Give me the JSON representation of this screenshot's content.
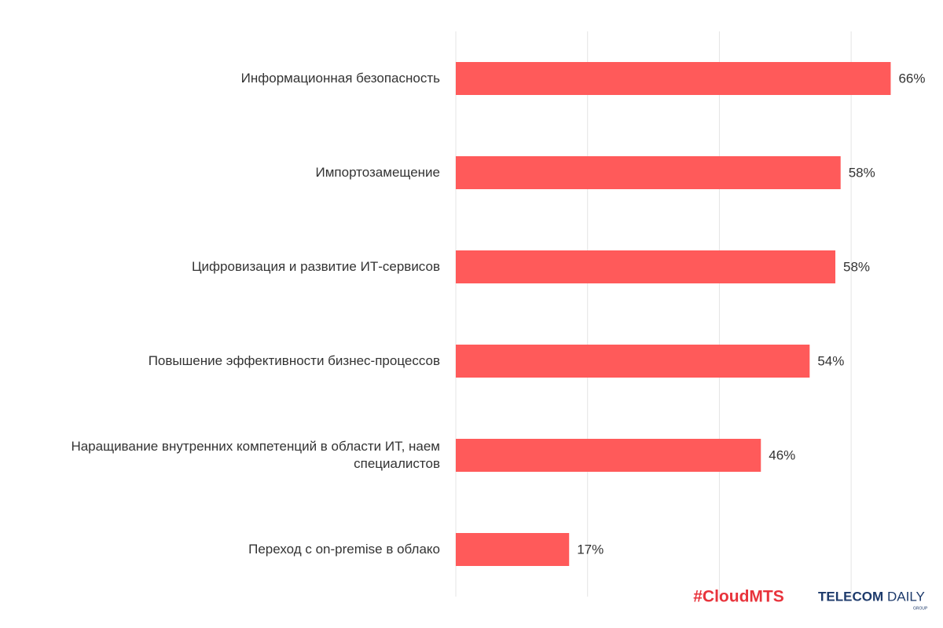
{
  "chart_data": {
    "type": "bar",
    "orientation": "horizontal",
    "categories": [
      "Информационная безопасность",
      "Импортозамещение",
      "Цифровизация и развитие ИТ-сервисов",
      "Повышение эффективности бизнес-процессов",
      "Наращивание внутренних компетенций в области ИТ, наем специалистов",
      "Переход с on-premise в облако"
    ],
    "values": [
      66,
      58.4,
      57.6,
      53.7,
      46.3,
      17.2
    ],
    "value_labels": [
      "66%",
      "58%",
      "58%",
      "54%",
      "46%",
      "17%"
    ],
    "color": "#ff5a5a",
    "xlim": [
      0,
      70
    ],
    "xticks": [
      0,
      20,
      40,
      60
    ],
    "grid": true
  },
  "logos": {
    "cloud": "#CloudMTS",
    "telecom": "TELECOM",
    "daily": "DAILY",
    "group": "GROUP"
  }
}
